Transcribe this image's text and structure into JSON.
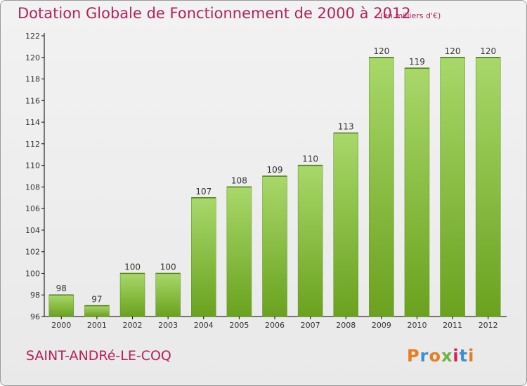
{
  "header": {
    "title": "Dotation Globale de Fonctionnement de 2000 à 2012",
    "subtitle": "(en milliers d'€)"
  },
  "footer": {
    "commune": "SAINT-ANDRé-LE-COQ",
    "logo": "Proxiti",
    "logo_colors": [
      "#e87c1e",
      "#3a8fd0",
      "#e87c1e",
      "#6cb33f",
      "#d81e5b",
      "#3a8fd0",
      "#e87c1e"
    ]
  },
  "colors": {
    "title": "#b5215a",
    "bar_light": "#a8d86a",
    "bar_dark": "#6aa21e",
    "axis": "#000000",
    "grid": "#d0d0d0"
  },
  "chart_data": {
    "type": "bar",
    "title": "Dotation Globale de Fonctionnement de 2000 à 2012",
    "subtitle": "(en milliers d'€)",
    "xlabel": "",
    "ylabel": "",
    "categories": [
      "2000",
      "2001",
      "2002",
      "2003",
      "2004",
      "2005",
      "2006",
      "2007",
      "2008",
      "2009",
      "2010",
      "2011",
      "2012"
    ],
    "values": [
      98,
      97,
      100,
      100,
      107,
      108,
      109,
      110,
      113,
      120,
      119,
      120,
      120
    ],
    "value_labels": [
      "98",
      "97",
      "100",
      "100",
      "107",
      "108",
      "109",
      "110",
      "113",
      "120",
      "119",
      "120",
      "120"
    ],
    "yticks": [
      "96",
      "98",
      "100",
      "102",
      "104",
      "106",
      "108",
      "110",
      "112",
      "114",
      "116",
      "118",
      "120",
      "122"
    ],
    "ylim": [
      96,
      122
    ],
    "grid": false,
    "legend": "none"
  }
}
